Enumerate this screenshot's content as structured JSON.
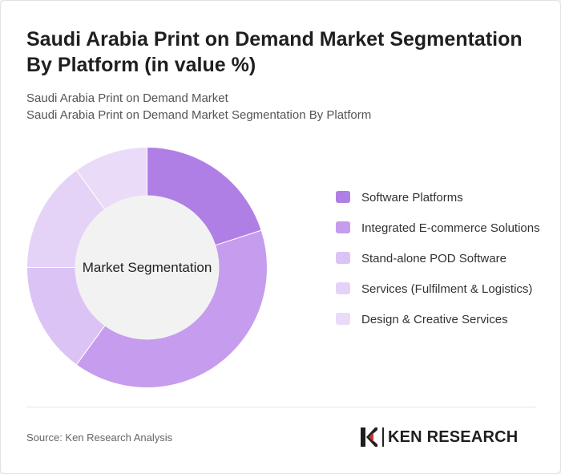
{
  "title": "Saudi Arabia Print on Demand Market Segmentation By Platform (in value %)",
  "subtitle1": "Saudi Arabia Print on Demand Market",
  "subtitle2": "Saudi Arabia Print on Demand Market Segmentation By Platform",
  "center_label": "Market Segmentation",
  "source": "Source: Ken Research Analysis",
  "logo_text": "KEN RESEARCH",
  "colors": {
    "background": "#ffffff",
    "center_fill": "#f2f2f2"
  },
  "chart_data": {
    "type": "pie",
    "donut": true,
    "title": "Saudi Arabia Print on Demand Market Segmentation By Platform (in value %)",
    "categories": [
      "Software Platforms",
      "Integrated E-commerce Solutions",
      "Stand-alone POD Software",
      "Services (Fulfilment & Logistics)",
      "Design & Creative Services"
    ],
    "values": [
      20,
      40,
      15,
      15,
      10
    ],
    "colors": [
      "#b07fe6",
      "#c59cee",
      "#dcc3f5",
      "#e5d3f7",
      "#eadcf8"
    ],
    "legend_position": "right"
  }
}
